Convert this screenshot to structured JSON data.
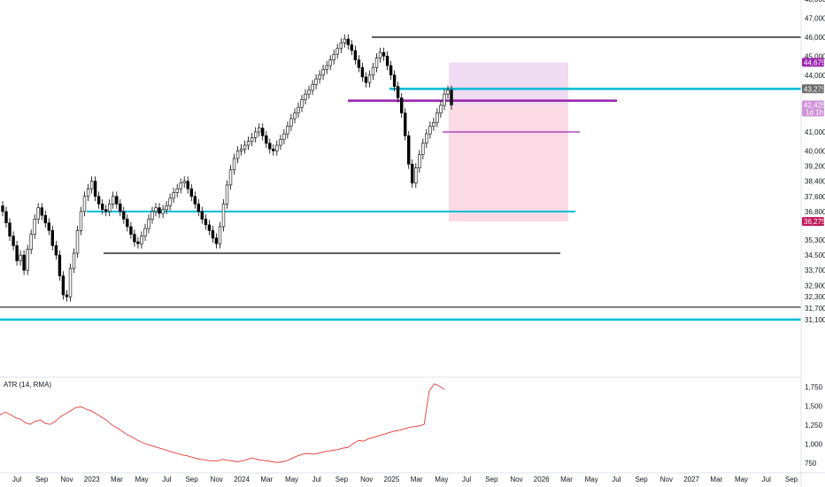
{
  "colors": {
    "up": "#ffffff",
    "down": "#000000",
    "cyan": "#00bcd4",
    "purple": "#9c27b0",
    "black_line": "#000000",
    "atr": "#e53935",
    "target_zone": "#e1bee7",
    "stop_zone": "#f8bbd0",
    "badge_purple": "#9c27b0",
    "badge_magenta": "#c2185b",
    "badge_grey": "#6b6b6b",
    "badge_lilac": "#ce93d8"
  },
  "chart_data": [
    {
      "type": "candlestick",
      "title": "",
      "y_ticks": [
        "48,000",
        "47,000",
        "46,000",
        "45,000",
        "44,000",
        "42,425",
        "41,000",
        "40,000",
        "39,200",
        "38,400",
        "37,600",
        "36,800",
        "35,300",
        "34,500",
        "33,700",
        "32,900",
        "32,300",
        "31,700",
        "31,100"
      ],
      "x_labels": [
        "Jul",
        "Sep",
        "Nov",
        "2023",
        "Mar",
        "May",
        "Jul",
        "Sep",
        "Nov",
        "2024",
        "Mar",
        "May",
        "Jul",
        "Sep",
        "Nov",
        "2025",
        "Mar",
        "May",
        "Jul",
        "Sep",
        "Nov",
        "2026",
        "Mar",
        "May",
        "Jul",
        "Sep",
        "Nov",
        "2027",
        "Mar",
        "May",
        "Jul",
        "Sep"
      ],
      "price_badges": [
        {
          "value": "44,675",
          "role": "target"
        },
        {
          "value": "43,275",
          "role": "resistance"
        },
        {
          "value": "42,425",
          "role": "last_price",
          "note": "1d 1h"
        },
        {
          "value": "36,275",
          "role": "stop"
        }
      ],
      "horizontal_levels": [
        {
          "value": 46000,
          "color": "black"
        },
        {
          "value": 43275,
          "color": "cyan"
        },
        {
          "value": 42650,
          "color": "purple"
        },
        {
          "value": 41000,
          "color": "purple"
        },
        {
          "value": 36800,
          "color": "cyan"
        },
        {
          "value": 34600,
          "color": "black"
        },
        {
          "value": 31750,
          "color": "black"
        },
        {
          "value": 31100,
          "color": "cyan"
        }
      ],
      "position_zones": {
        "target_top": 44675,
        "entry": 42425,
        "stop": 36275
      },
      "series": [
        {
          "name": "",
          "values": [
            36800,
            36200,
            35500,
            35000,
            34200,
            34500,
            33700,
            34800,
            35600,
            36400,
            37000,
            36600,
            36200,
            35800,
            35000,
            34500,
            33400,
            32400,
            32300,
            33800,
            34600,
            35800,
            36800,
            37600,
            38000,
            38400,
            37600,
            37200,
            36900,
            36800,
            37200,
            37600,
            37200,
            36800,
            36400,
            36000,
            35600,
            35200,
            35100,
            35500,
            35900,
            36400,
            36800,
            37000,
            36700,
            36900,
            37100,
            37500,
            37800,
            38000,
            38300,
            38400,
            38000,
            37600,
            37200,
            36800,
            36400,
            36100,
            35800,
            35400,
            35100,
            36000,
            37200,
            38200,
            39000,
            39600,
            40000,
            40100,
            40300,
            40500,
            40700,
            41000,
            41200,
            40800,
            40400,
            40100,
            40000,
            40300,
            40600,
            40900,
            41300,
            41700,
            42000,
            42300,
            42700,
            43000,
            43200,
            43500,
            43800,
            44000,
            44300,
            44500,
            44800,
            45100,
            45400,
            45700,
            45900,
            45600,
            45300,
            44800,
            44400,
            43900,
            43600,
            44000,
            44400,
            44900,
            45200,
            45000,
            44500,
            44000,
            43400,
            42800,
            42000,
            40800,
            39300,
            38300,
            39100,
            39800,
            40400,
            40900,
            41300,
            41500,
            42000,
            42400,
            43000,
            43200,
            42425
          ]
        }
      ]
    },
    {
      "type": "line",
      "title": "ATR (14, RMA)",
      "y_ticks": [
        "1,750",
        "1,500",
        "1,250",
        "1,000",
        "750"
      ],
      "series": [
        {
          "name": "ATR",
          "values": [
            1380,
            1420,
            1390,
            1350,
            1330,
            1280,
            1260,
            1300,
            1320,
            1270,
            1260,
            1300,
            1360,
            1400,
            1440,
            1480,
            1490,
            1460,
            1440,
            1400,
            1360,
            1320,
            1260,
            1220,
            1180,
            1130,
            1100,
            1060,
            1030,
            1000,
            980,
            960,
            940,
            920,
            900,
            880,
            860,
            850,
            830,
            810,
            800,
            790,
            780,
            780,
            800,
            790,
            780,
            770,
            780,
            800,
            820,
            800,
            790,
            780,
            770,
            760,
            770,
            790,
            820,
            850,
            870,
            880,
            870,
            880,
            900,
            910,
            920,
            930,
            950,
            960,
            1010,
            1050,
            1040,
            1070,
            1090,
            1110,
            1130,
            1150,
            1170,
            1180,
            1200,
            1220,
            1230,
            1240,
            1260,
            1700,
            1790,
            1760,
            1720
          ]
        }
      ]
    }
  ]
}
